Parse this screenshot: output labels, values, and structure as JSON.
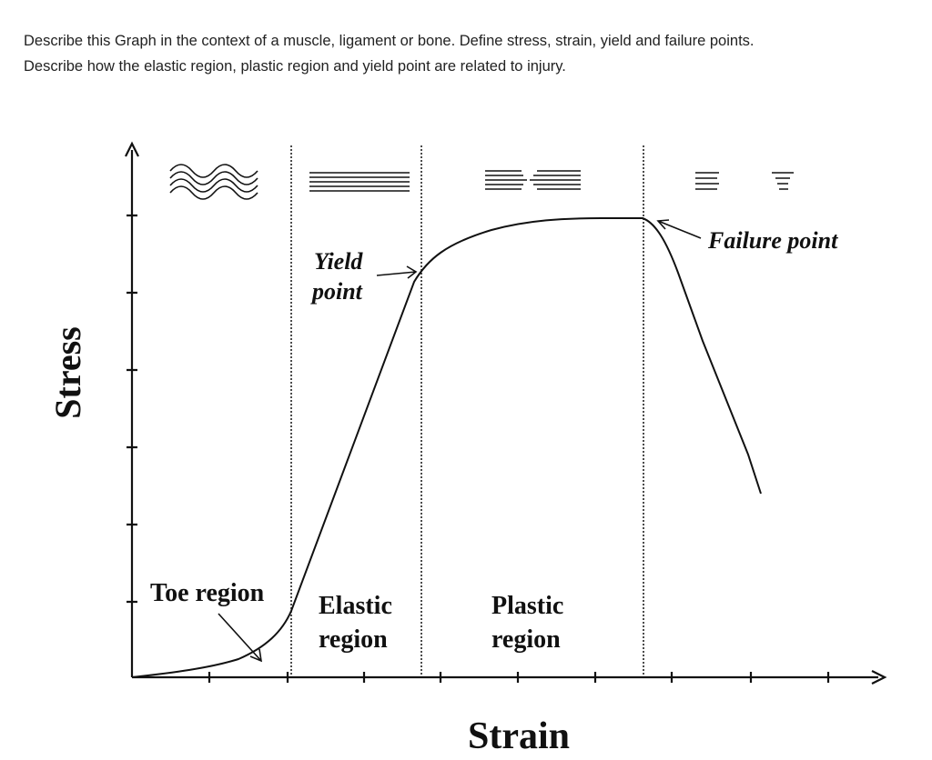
{
  "question": {
    "lines": [
      "Describe this Graph in the context of a muscle, ligament or bone. Define stress, strain, yield and failure points.",
      "Describe how the elastic region, plastic region and yield point are related to injury."
    ]
  },
  "diagram": {
    "y_axis_label": "Stress",
    "x_axis_label": "Strain",
    "labels": {
      "toe_region": "Toe region",
      "elastic_region": [
        "Elastic",
        "region"
      ],
      "plastic_region": [
        "Plastic",
        "region"
      ],
      "yield_point": [
        "Yield",
        "point"
      ],
      "failure_point": "Failure point"
    }
  }
}
